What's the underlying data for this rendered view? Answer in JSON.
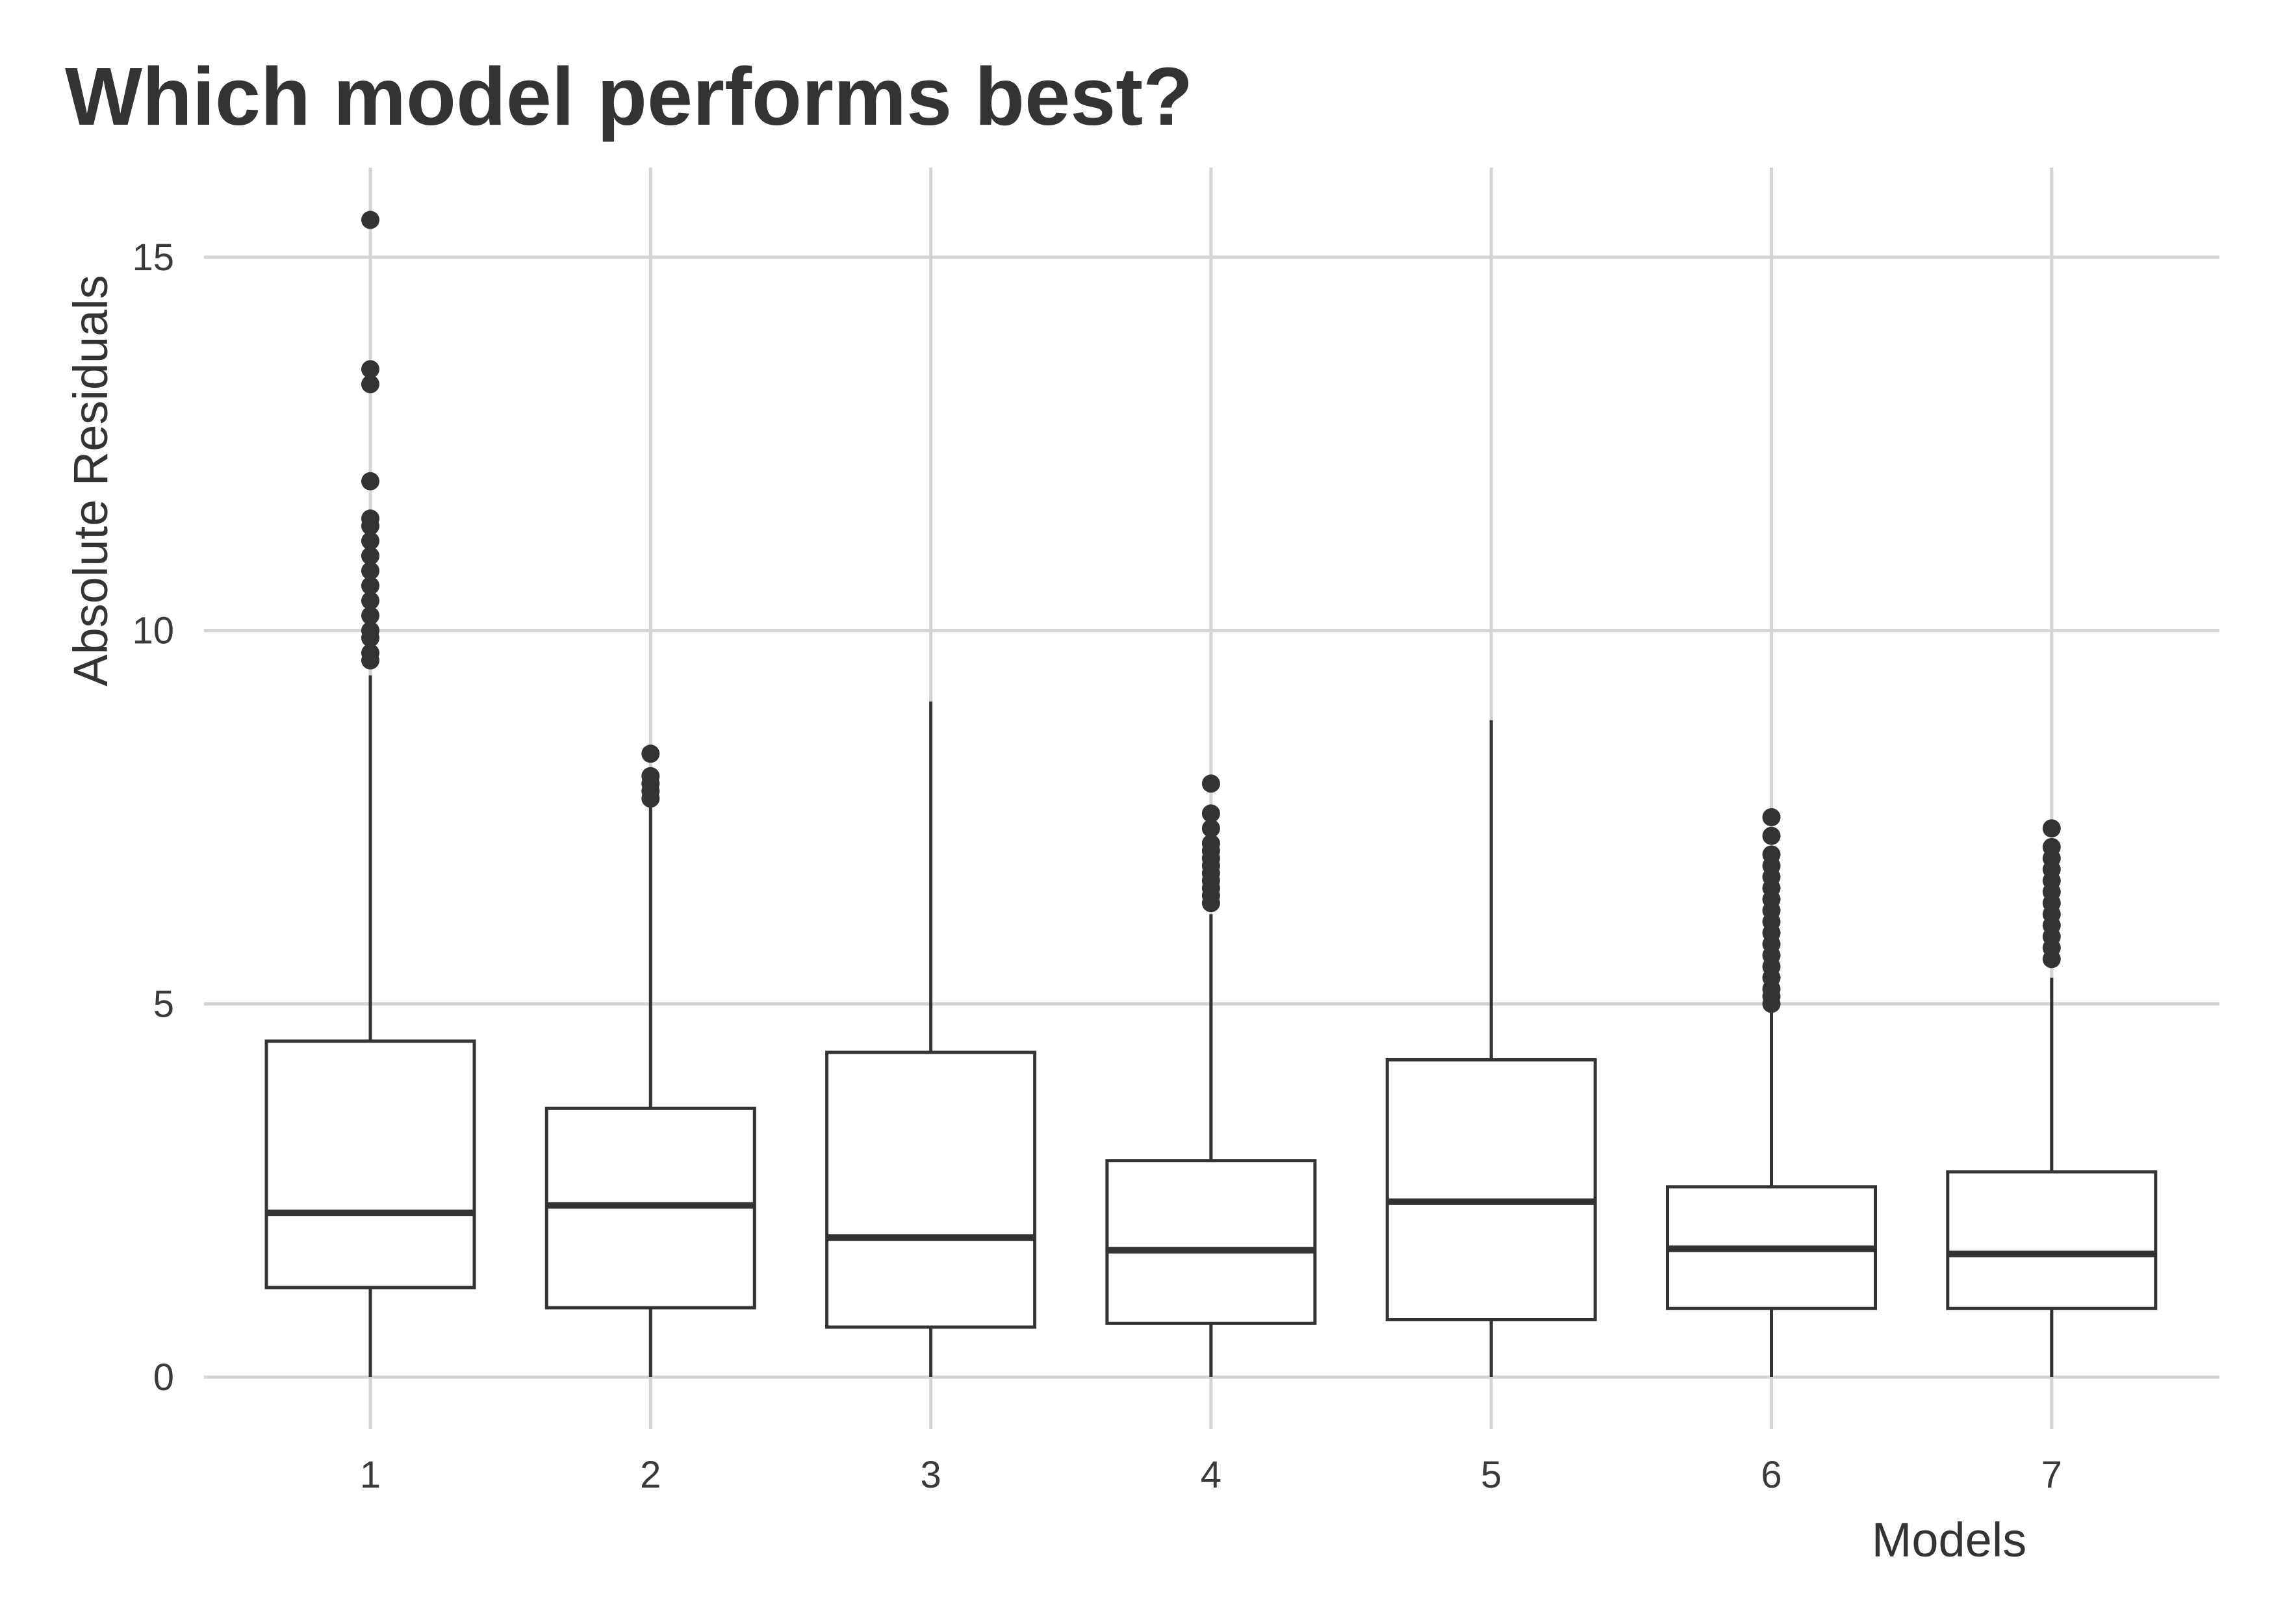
{
  "chart_data": {
    "type": "boxplot",
    "title": "Which model performs best?",
    "xlabel": "Models",
    "ylabel": "Absolute Residuals",
    "categories": [
      "1",
      "2",
      "3",
      "4",
      "5",
      "6",
      "7"
    ],
    "yticks": [
      "0",
      "5",
      "10",
      "15"
    ],
    "ylim": [
      -0.7,
      16.2
    ],
    "grid": true,
    "legend": "none",
    "boxes": [
      {
        "model": "1",
        "whisker_low": 0,
        "q1": 1.2,
        "median": 2.2,
        "q3": 4.5,
        "whisker_high": 9.4,
        "outliers": [
          9.6,
          9.7,
          9.9,
          10.0,
          10.2,
          10.4,
          10.6,
          10.8,
          11.0,
          11.2,
          11.4,
          11.5,
          12.0,
          13.3,
          13.5,
          15.5
        ]
      },
      {
        "model": "2",
        "whisker_low": 0,
        "q1": 0.93,
        "median": 2.3,
        "q3": 3.6,
        "whisker_high": 7.7,
        "outliers": [
          7.75,
          7.85,
          7.95,
          8.05,
          8.35
        ]
      },
      {
        "model": "3",
        "whisker_low": 0,
        "q1": 0.67,
        "median": 1.87,
        "q3": 4.35,
        "whisker_high": 9.05,
        "outliers": []
      },
      {
        "model": "4",
        "whisker_low": 0,
        "q1": 0.72,
        "median": 1.7,
        "q3": 2.9,
        "whisker_high": 6.2,
        "outliers": [
          6.35,
          6.45,
          6.55,
          6.65,
          6.75,
          6.85,
          6.95,
          7.05,
          7.15,
          7.35,
          7.55,
          7.95
        ]
      },
      {
        "model": "5",
        "whisker_low": 0,
        "q1": 0.77,
        "median": 2.35,
        "q3": 4.25,
        "whisker_high": 8.8,
        "outliers": []
      },
      {
        "model": "6",
        "whisker_low": 0,
        "q1": 0.92,
        "median": 1.72,
        "q3": 2.55,
        "whisker_high": 4.9,
        "outliers": [
          5.0,
          5.1,
          5.2,
          5.35,
          5.5,
          5.65,
          5.8,
          5.95,
          6.1,
          6.25,
          6.4,
          6.55,
          6.7,
          6.85,
          7.0,
          7.25,
          7.5
        ]
      },
      {
        "model": "7",
        "whisker_low": 0,
        "q1": 0.92,
        "median": 1.65,
        "q3": 2.75,
        "whisker_high": 5.35,
        "outliers": [
          5.6,
          5.75,
          5.9,
          6.05,
          6.2,
          6.35,
          6.5,
          6.65,
          6.8,
          6.95,
          7.1,
          7.35
        ]
      }
    ]
  }
}
